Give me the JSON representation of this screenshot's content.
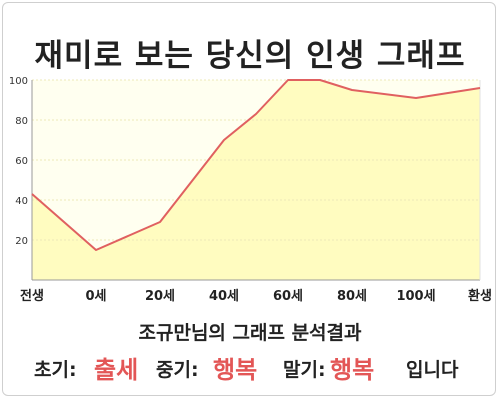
{
  "title": "재미로 보는 당신의 인생 그래프",
  "subtitle": "조규만님의 그래프 분석결과",
  "result": {
    "early_label": "초기:",
    "early_value": "출세",
    "mid_label": "중기:",
    "mid_value": "행복",
    "late_label": "말기:",
    "late_value": "행복",
    "ending": "입니다"
  },
  "colors": {
    "line": "#e06060",
    "fill": "#fffcc0",
    "plot_bg": "#fffff0",
    "accent": "#e35656"
  },
  "chart_data": {
    "type": "area",
    "categories": [
      "전생",
      "0세",
      "20세",
      "40세",
      "60세",
      "80세",
      "100세",
      "환생"
    ],
    "x": [
      0,
      1,
      2,
      3,
      3.5,
      4,
      4.5,
      5,
      6,
      7
    ],
    "values": [
      43,
      15,
      29,
      70,
      83,
      100,
      100,
      95,
      91,
      96
    ],
    "yticks": [
      20,
      40,
      60,
      80,
      100
    ],
    "ylim": [
      0,
      100
    ],
    "grid": true,
    "title": "재미로 보는 당신의 인생 그래프",
    "xlabel": "",
    "ylabel": ""
  }
}
